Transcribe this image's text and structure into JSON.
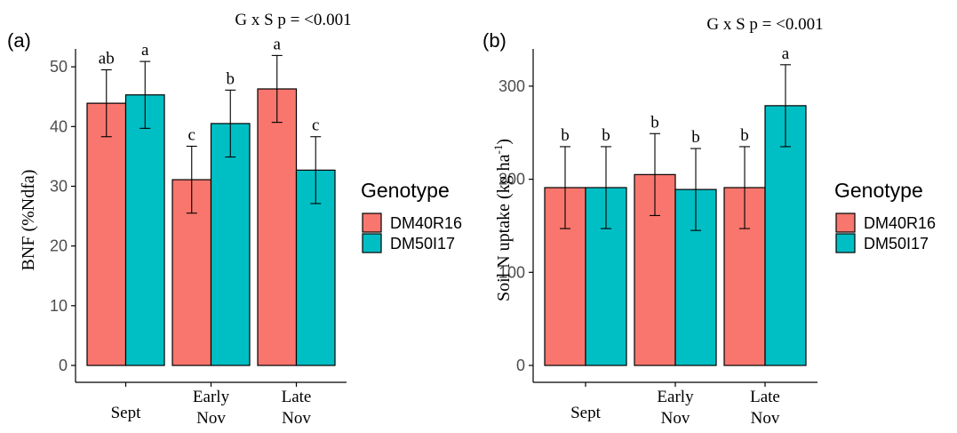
{
  "chart_data": [
    {
      "type": "bar",
      "panel_label": "(a)",
      "title": "G x S p = <0.001",
      "ylabel": "BNF (%Ndfa)",
      "xlabel": "",
      "ylim": [
        0,
        53
      ],
      "yticks": [
        0,
        10,
        20,
        30,
        40,
        50
      ],
      "categories": [
        "Sept",
        "Early Nov",
        "Late Nov"
      ],
      "category_lines": [
        [
          "Sept"
        ],
        [
          "Early",
          "Nov"
        ],
        [
          "Late",
          "Nov"
        ]
      ],
      "series": [
        {
          "name": "DM40R16",
          "color": "#F8766D",
          "values": [
            43.9,
            31.1,
            46.3
          ],
          "errors": [
            5.6,
            5.6,
            5.6
          ],
          "letters": [
            "ab",
            "c",
            "a"
          ]
        },
        {
          "name": "DM50I17",
          "color": "#00BFC4",
          "values": [
            45.3,
            40.5,
            32.7
          ],
          "errors": [
            5.6,
            5.6,
            5.6
          ],
          "letters": [
            "a",
            "b",
            "c"
          ]
        }
      ],
      "legend": {
        "title": "Genotype",
        "position": "right"
      }
    },
    {
      "type": "bar",
      "panel_label": "(b)",
      "title": "G x S p = <0.001",
      "ylabel_main": "Soil N uptake (kg ha",
      "ylabel_sup": "-1",
      "ylabel_end": ")",
      "xlabel": "",
      "ylim": [
        0,
        340
      ],
      "yticks": [
        0,
        100,
        200,
        300
      ],
      "categories": [
        "Sept",
        "Early Nov",
        "Late Nov"
      ],
      "category_lines": [
        [
          "Sept"
        ],
        [
          "Early",
          "Nov"
        ],
        [
          "Late",
          "Nov"
        ]
      ],
      "series": [
        {
          "name": "DM40R16",
          "color": "#F8766D",
          "values": [
            191,
            205,
            191
          ],
          "errors": [
            44,
            44,
            44
          ],
          "letters": [
            "b",
            "b",
            "b"
          ]
        },
        {
          "name": "DM50I17",
          "color": "#00BFC4",
          "values": [
            191,
            189,
            279
          ],
          "errors": [
            44,
            44,
            44
          ],
          "letters": [
            "b",
            "b",
            "a"
          ]
        }
      ],
      "legend": {
        "title": "Genotype",
        "position": "right"
      }
    }
  ]
}
